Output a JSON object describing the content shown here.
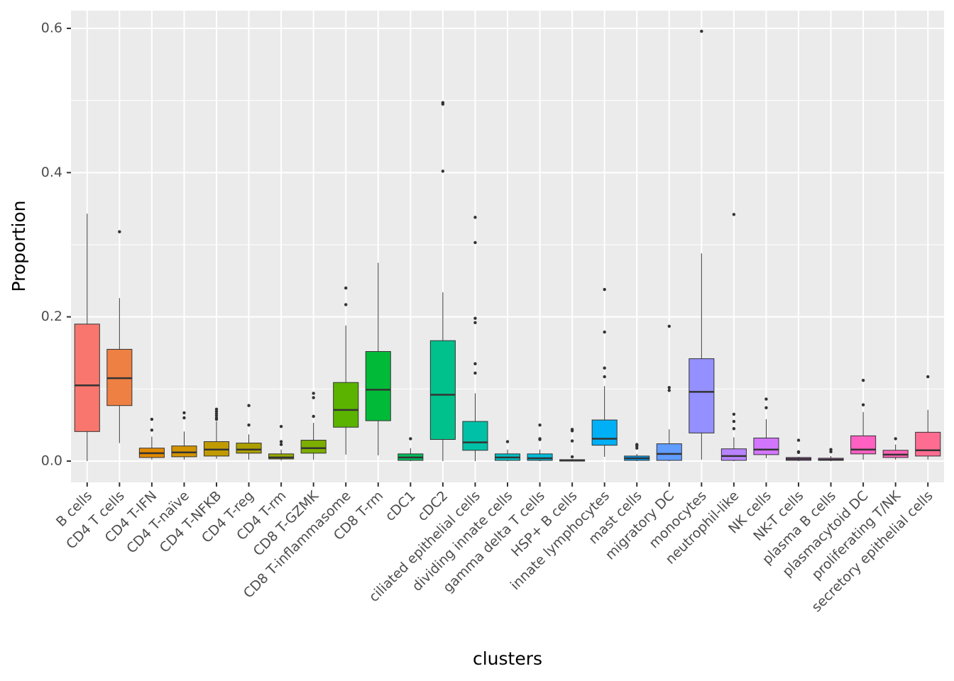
{
  "chart_data": {
    "type": "box",
    "x_label": "clusters",
    "y_label": "Proportion",
    "categories": [
      "B cells",
      "CD4 T cells",
      "CD4 T-IFN",
      "CD4 T-naïve",
      "CD4 T-NFKB",
      "CD4 T-reg",
      "CD4 T-rm",
      "CD8 T-GZMK",
      "CD8 T-inflammasome",
      "CD8 T-rm",
      "cDC1",
      "cDC2",
      "ciliated epithelial cells",
      "dividing innate cells",
      "gamma delta T cells",
      "HSP+ B cells",
      "innate lymphocytes",
      "mast cells",
      "migratory DC",
      "monocytes",
      "neutrophil-like",
      "NK cells",
      "NK-T cells",
      "plasma B cells",
      "plasmacytoid DC",
      "proliferating T/NK",
      "secretory epithelial cells"
    ],
    "colors": [
      "#F8766D",
      "#EE8043",
      "#E18A00",
      "#D29300",
      "#C09B00",
      "#AC9F00",
      "#96A900",
      "#7CAE00",
      "#5BB300",
      "#00BA38",
      "#00BD5C",
      "#00C08B",
      "#00C1A7",
      "#00BFC4",
      "#00BBDA",
      "#00B4EF",
      "#00B0F6",
      "#00A5FF",
      "#619CFF",
      "#9590FF",
      "#B983FF",
      "#D376FF",
      "#E76BF3",
      "#F564E3",
      "#FF61C3",
      "#FF63B6",
      "#FF6C91"
    ],
    "boxes": [
      {
        "low": 0,
        "q1": 0.041,
        "median": 0.105,
        "q3": 0.19,
        "high": 0.343,
        "outliers": []
      },
      {
        "low": 0.025,
        "q1": 0.077,
        "median": 0.115,
        "q3": 0.155,
        "high": 0.226,
        "outliers": [
          0.318
        ]
      },
      {
        "low": 0.002,
        "q1": 0.005,
        "median": 0.011,
        "q3": 0.018,
        "high": 0.034,
        "outliers": [
          0.043,
          0.058
        ]
      },
      {
        "low": 0.002,
        "q1": 0.006,
        "median": 0.012,
        "q3": 0.021,
        "high": 0.041,
        "outliers": [
          0.06,
          0.067
        ]
      },
      {
        "low": 0.003,
        "q1": 0.007,
        "median": 0.016,
        "q3": 0.027,
        "high": 0.055,
        "outliers": [
          0.058,
          0.06,
          0.063,
          0.066,
          0.069,
          0.072
        ]
      },
      {
        "low": 0.002,
        "q1": 0.011,
        "median": 0.016,
        "q3": 0.025,
        "high": 0.037,
        "outliers": [
          0.05,
          0.077
        ]
      },
      {
        "low": 0.001,
        "q1": 0.003,
        "median": 0.005,
        "q3": 0.01,
        "high": 0.016,
        "outliers": [
          0.023,
          0.027,
          0.048
        ]
      },
      {
        "low": 0.002,
        "q1": 0.011,
        "median": 0.018,
        "q3": 0.029,
        "high": 0.053,
        "outliers": [
          0.062,
          0.088,
          0.094
        ]
      },
      {
        "low": 0.009,
        "q1": 0.047,
        "median": 0.071,
        "q3": 0.109,
        "high": 0.188,
        "outliers": [
          0.217,
          0.24
        ]
      },
      {
        "low": 0.008,
        "q1": 0.056,
        "median": 0.099,
        "q3": 0.152,
        "high": 0.275,
        "outliers": []
      },
      {
        "low": 0,
        "q1": 0.001,
        "median": 0.005,
        "q3": 0.01,
        "high": 0.018,
        "outliers": [
          0.031
        ]
      },
      {
        "low": 0,
        "q1": 0.03,
        "median": 0.092,
        "q3": 0.167,
        "high": 0.234,
        "outliers": [
          0.402,
          0.495,
          0.497
        ]
      },
      {
        "low": 0,
        "q1": 0.015,
        "median": 0.026,
        "q3": 0.055,
        "high": 0.094,
        "outliers": [
          0.122,
          0.135,
          0.192,
          0.198,
          0.303,
          0.338
        ]
      },
      {
        "low": 0,
        "q1": 0.001,
        "median": 0.005,
        "q3": 0.01,
        "high": 0.016,
        "outliers": [
          0.027
        ]
      },
      {
        "low": 0,
        "q1": 0.001,
        "median": 0.004,
        "q3": 0.01,
        "high": 0.016,
        "outliers": [
          0.03,
          0.031,
          0.05
        ]
      },
      {
        "low": 0,
        "q1": 0,
        "median": 0.001,
        "q3": 0.002,
        "high": 0.003,
        "outliers": [
          0.006,
          0.028,
          0.042,
          0.044
        ]
      },
      {
        "low": 0.006,
        "q1": 0.022,
        "median": 0.031,
        "q3": 0.057,
        "high": 0.104,
        "outliers": [
          0.117,
          0.129,
          0.179,
          0.238
        ]
      },
      {
        "low": 0,
        "q1": 0.001,
        "median": 0.004,
        "q3": 0.007,
        "high": 0.01,
        "outliers": [
          0.018,
          0.021,
          0.023
        ]
      },
      {
        "low": 0,
        "q1": 0.001,
        "median": 0.01,
        "q3": 0.024,
        "high": 0.044,
        "outliers": [
          0.098,
          0.102,
          0.187
        ]
      },
      {
        "low": 0.002,
        "q1": 0.039,
        "median": 0.096,
        "q3": 0.142,
        "high": 0.288,
        "outliers": [
          0.596
        ]
      },
      {
        "low": 0,
        "q1": 0.001,
        "median": 0.007,
        "q3": 0.017,
        "high": 0.033,
        "outliers": [
          0.045,
          0.055,
          0.065,
          0.342
        ]
      },
      {
        "low": 0.004,
        "q1": 0.009,
        "median": 0.016,
        "q3": 0.032,
        "high": 0.058,
        "outliers": [
          0.074,
          0.086
        ]
      },
      {
        "low": 0,
        "q1": 0.001,
        "median": 0.003,
        "q3": 0.005,
        "high": 0.006,
        "outliers": [
          0.012,
          0.013,
          0.029
        ]
      },
      {
        "low": 0,
        "q1": 0.001,
        "median": 0.002,
        "q3": 0.004,
        "high": 0.007,
        "outliers": [
          0.013,
          0.016
        ]
      },
      {
        "low": 0.002,
        "q1": 0.01,
        "median": 0.016,
        "q3": 0.035,
        "high": 0.068,
        "outliers": [
          0.078,
          0.112
        ]
      },
      {
        "low": 0.002,
        "q1": 0.005,
        "median": 0.009,
        "q3": 0.015,
        "high": 0.023,
        "outliers": [
          0.031
        ]
      },
      {
        "low": 0.002,
        "q1": 0.007,
        "median": 0.015,
        "q3": 0.04,
        "high": 0.071,
        "outliers": [
          0.117
        ]
      }
    ],
    "ylim": [
      -0.0295,
      0.6246
    ],
    "yticks": [
      {
        "value": 0,
        "label": "0.0"
      },
      0.2,
      0.4,
      0.6
    ],
    "yminor": [
      0.1,
      0.3,
      0.5
    ],
    "grid": true
  }
}
